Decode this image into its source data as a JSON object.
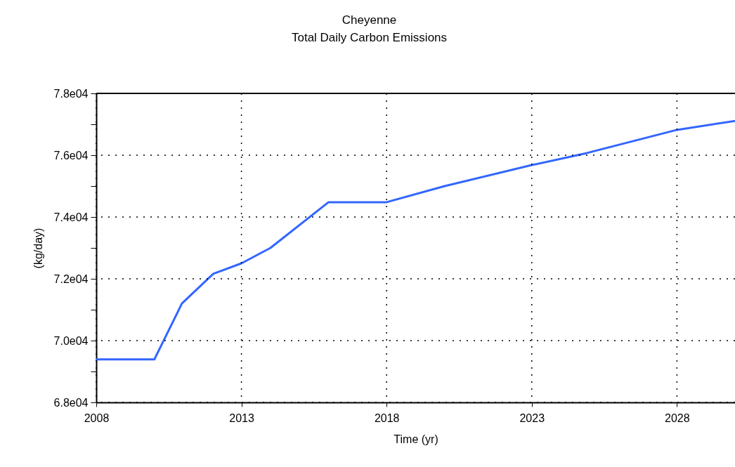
{
  "chart_data": {
    "type": "line",
    "title": "Cheyenne",
    "subtitle": "Total Daily Carbon Emissions",
    "xlabel": "Time (yr)",
    "ylabel": "(kg/day)",
    "x": [
      2008,
      2010,
      2010.95,
      2012.03,
      2013,
      2014,
      2016,
      2018,
      2020,
      2023,
      2024.9,
      2028,
      2030
    ],
    "series": [
      {
        "color": "#3366ff",
        "values": [
          69390,
          69390,
          71200,
          72160,
          72500,
          73000,
          74480,
          74480,
          75000,
          75680,
          76070,
          76820,
          77110
        ]
      }
    ],
    "xlim": [
      2008,
      2030
    ],
    "xticks": [
      2008,
      2013,
      2018,
      2023,
      2028
    ],
    "ylim": [
      68000,
      78000
    ],
    "yticks": [
      {
        "value": 68000,
        "label": "6.8e04"
      },
      {
        "value": 69000,
        "label": null
      },
      {
        "value": 70000,
        "label": "7.0e04"
      },
      {
        "value": 71000,
        "label": null
      },
      {
        "value": 72000,
        "label": "7.2e04"
      },
      {
        "value": 73000,
        "label": null
      },
      {
        "value": 74000,
        "label": "7.4e04"
      },
      {
        "value": 75000,
        "label": null
      },
      {
        "value": 76000,
        "label": "7.6e04"
      },
      {
        "value": 77000,
        "label": null
      },
      {
        "value": 78000,
        "label": "7.8e04"
      }
    ],
    "grid": true,
    "line_style": "solid"
  }
}
